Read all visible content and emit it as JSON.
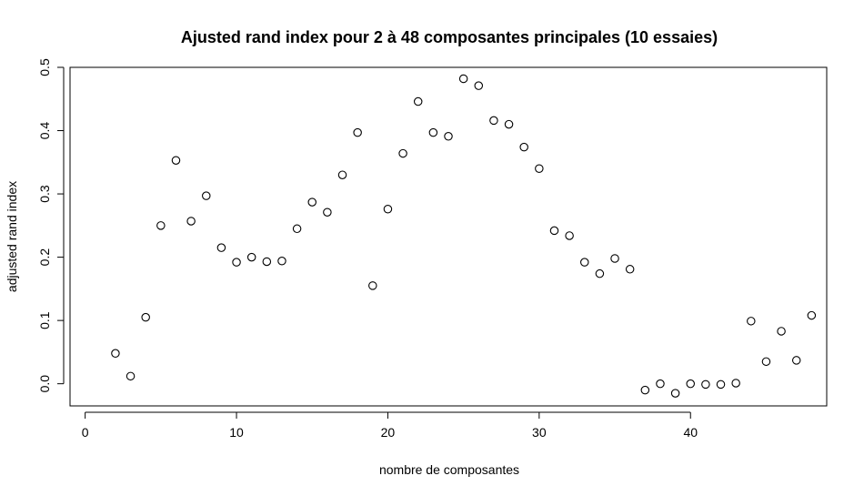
{
  "chart_data": {
    "type": "scatter",
    "title": "Ajusted rand index pour 2 à 48 composantes principales (10 essaies)",
    "xlabel": "nombre de composantes",
    "ylabel": "adjusted rand index",
    "xlim": [
      -1,
      49
    ],
    "ylim": [
      -0.035,
      0.5
    ],
    "xticks": [
      0,
      10,
      20,
      30,
      40
    ],
    "yticks": [
      0.0,
      0.1,
      0.2,
      0.3,
      0.4,
      0.5
    ],
    "ytick_labels": [
      "0.0",
      "0.1",
      "0.2",
      "0.3",
      "0.4",
      "0.5"
    ],
    "grid": false,
    "marker": "open-circle",
    "x": [
      2,
      3,
      4,
      5,
      6,
      7,
      8,
      9,
      10,
      11,
      12,
      13,
      14,
      15,
      16,
      17,
      18,
      19,
      20,
      21,
      22,
      23,
      24,
      25,
      26,
      27,
      28,
      29,
      30,
      31,
      32,
      33,
      34,
      35,
      36,
      37,
      38,
      39,
      40,
      41,
      42,
      43,
      44,
      45,
      46,
      47,
      48
    ],
    "y": [
      0.048,
      0.012,
      0.105,
      0.25,
      0.353,
      0.257,
      0.297,
      0.215,
      0.192,
      0.2,
      0.193,
      0.194,
      0.245,
      0.287,
      0.271,
      0.33,
      0.397,
      0.155,
      0.276,
      0.364,
      0.446,
      0.397,
      0.391,
      0.482,
      0.471,
      0.416,
      0.41,
      0.374,
      0.34,
      0.242,
      0.234,
      0.192,
      0.174,
      0.198,
      0.181,
      -0.01,
      0.0,
      -0.015,
      0.0,
      -0.001,
      -0.001,
      0.001,
      0.099,
      0.035,
      0.083,
      0.037,
      0.108
    ]
  }
}
